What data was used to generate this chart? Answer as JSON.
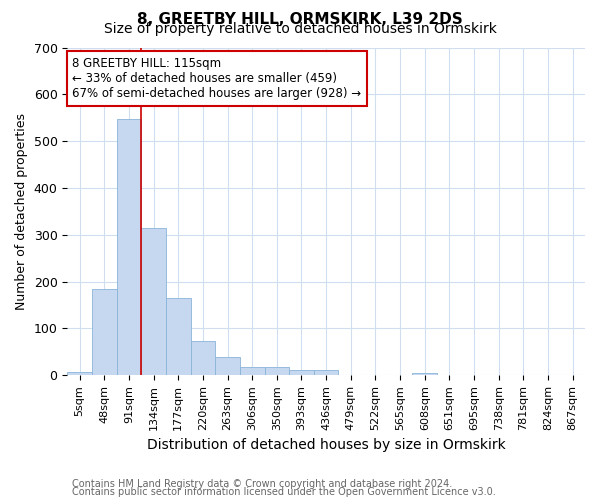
{
  "title_line1": "8, GREETBY HILL, ORMSKIRK, L39 2DS",
  "title_line2": "Size of property relative to detached houses in Ormskirk",
  "xlabel": "Distribution of detached houses by size in Ormskirk",
  "ylabel": "Number of detached properties",
  "categories": [
    "5sqm",
    "48sqm",
    "91sqm",
    "134sqm",
    "177sqm",
    "220sqm",
    "263sqm",
    "306sqm",
    "350sqm",
    "393sqm",
    "436sqm",
    "479sqm",
    "522sqm",
    "565sqm",
    "608sqm",
    "651sqm",
    "695sqm",
    "738sqm",
    "781sqm",
    "824sqm",
    "867sqm"
  ],
  "values": [
    8,
    185,
    548,
    315,
    165,
    73,
    40,
    18,
    18,
    12,
    12,
    0,
    0,
    0,
    4,
    0,
    0,
    0,
    0,
    0,
    0
  ],
  "bar_color": "#c5d8f0",
  "bar_edge_color": "#8ab4d8",
  "red_line_x": 2.5,
  "annotation_text": "8 GREETBY HILL: 115sqm\n← 33% of detached houses are smaller (459)\n67% of semi-detached houses are larger (928) →",
  "annotation_box_color": "white",
  "annotation_box_edge_color": "#cc0000",
  "ylim": [
    0,
    700
  ],
  "yticks": [
    0,
    100,
    200,
    300,
    400,
    500,
    600,
    700
  ],
  "footnote_line1": "Contains HM Land Registry data © Crown copyright and database right 2024.",
  "footnote_line2": "Contains public sector information licensed under the Open Government Licence v3.0.",
  "background_color": "#ffffff",
  "plot_background_color": "#ffffff",
  "grid_color": "#d0dff0",
  "title_fontsize": 11,
  "subtitle_fontsize": 10,
  "label_fontsize": 9,
  "tick_fontsize": 8,
  "footnote_fontsize": 7,
  "annot_fontsize": 8.5
}
